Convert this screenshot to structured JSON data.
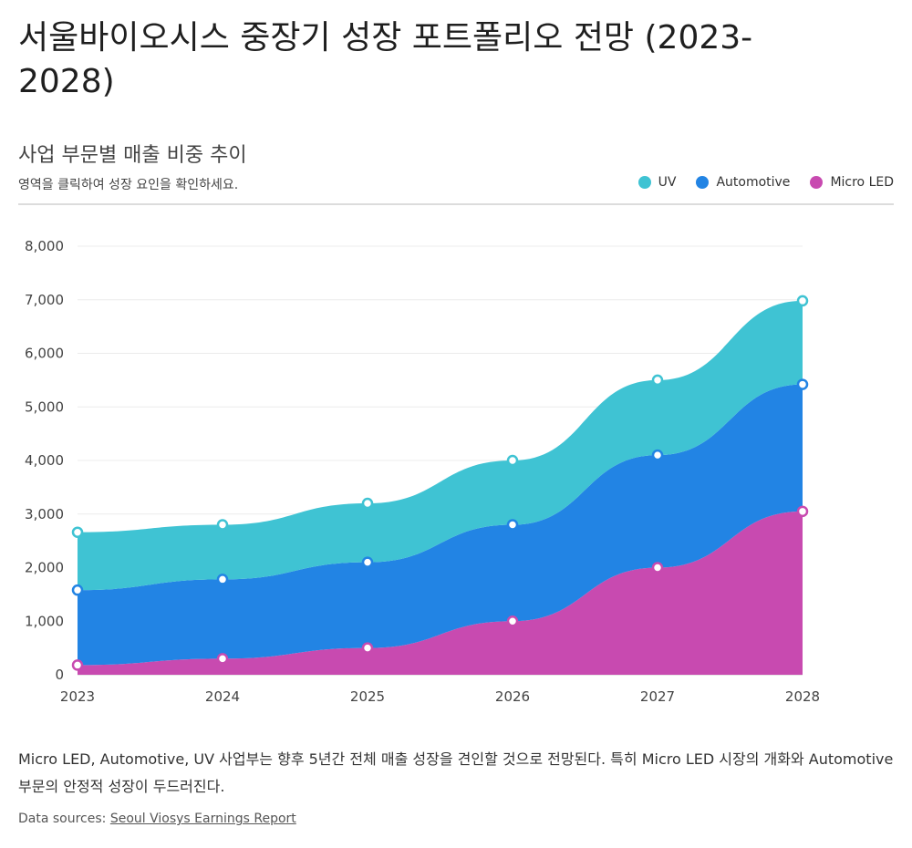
{
  "page": {
    "title": "서울바이오시스 중장기 성장 포트폴리오 전망 (2023-2028)",
    "subtitle": "사업 부문별 매출 비중 추이",
    "hint": "영역을 클릭하여 성장 요인을 확인하세요.",
    "note": "Micro LED, Automotive, UV 사업부는 향후 5년간 전체 매출 성장을 견인할 것으로 전망된다. 특히 Micro LED 시장의 개화와 Automotive 부문의 안정적 성장이 두드러진다.",
    "source_prefix": "Data sources:",
    "source_link": "Seoul Viosys Earnings Report"
  },
  "legend": [
    {
      "name": "UV",
      "color": "#3fc3d3"
    },
    {
      "name": "Automotive",
      "color": "#2284e4"
    },
    {
      "name": "Micro LED",
      "color": "#c84ab0"
    }
  ],
  "chart_data": {
    "type": "area",
    "stacked": true,
    "title": "사업 부문별 매출 비중 추이",
    "x": [
      "2023",
      "2024",
      "2025",
      "2026",
      "2027",
      "2028"
    ],
    "series": [
      {
        "name": "Micro LED",
        "color": "#c84ab0",
        "values": [
          180,
          300,
          500,
          1000,
          2000,
          3050
        ]
      },
      {
        "name": "Automotive",
        "color": "#2284e4",
        "values": [
          1400,
          1480,
          1600,
          1800,
          2100,
          2370
        ]
      },
      {
        "name": "UV",
        "color": "#3fc3d3",
        "values": [
          1080,
          1020,
          1100,
          1200,
          1400,
          1560
        ]
      }
    ],
    "ylim": [
      0,
      8000
    ],
    "yticks": [
      0,
      1000,
      2000,
      3000,
      4000,
      5000,
      6000,
      7000,
      8000
    ],
    "ytick_labels": [
      "0",
      "1,000",
      "2,000",
      "3,000",
      "4,000",
      "5,000",
      "6,000",
      "7,000",
      "8,000"
    ],
    "grid": true,
    "legend_position": "top-right"
  }
}
